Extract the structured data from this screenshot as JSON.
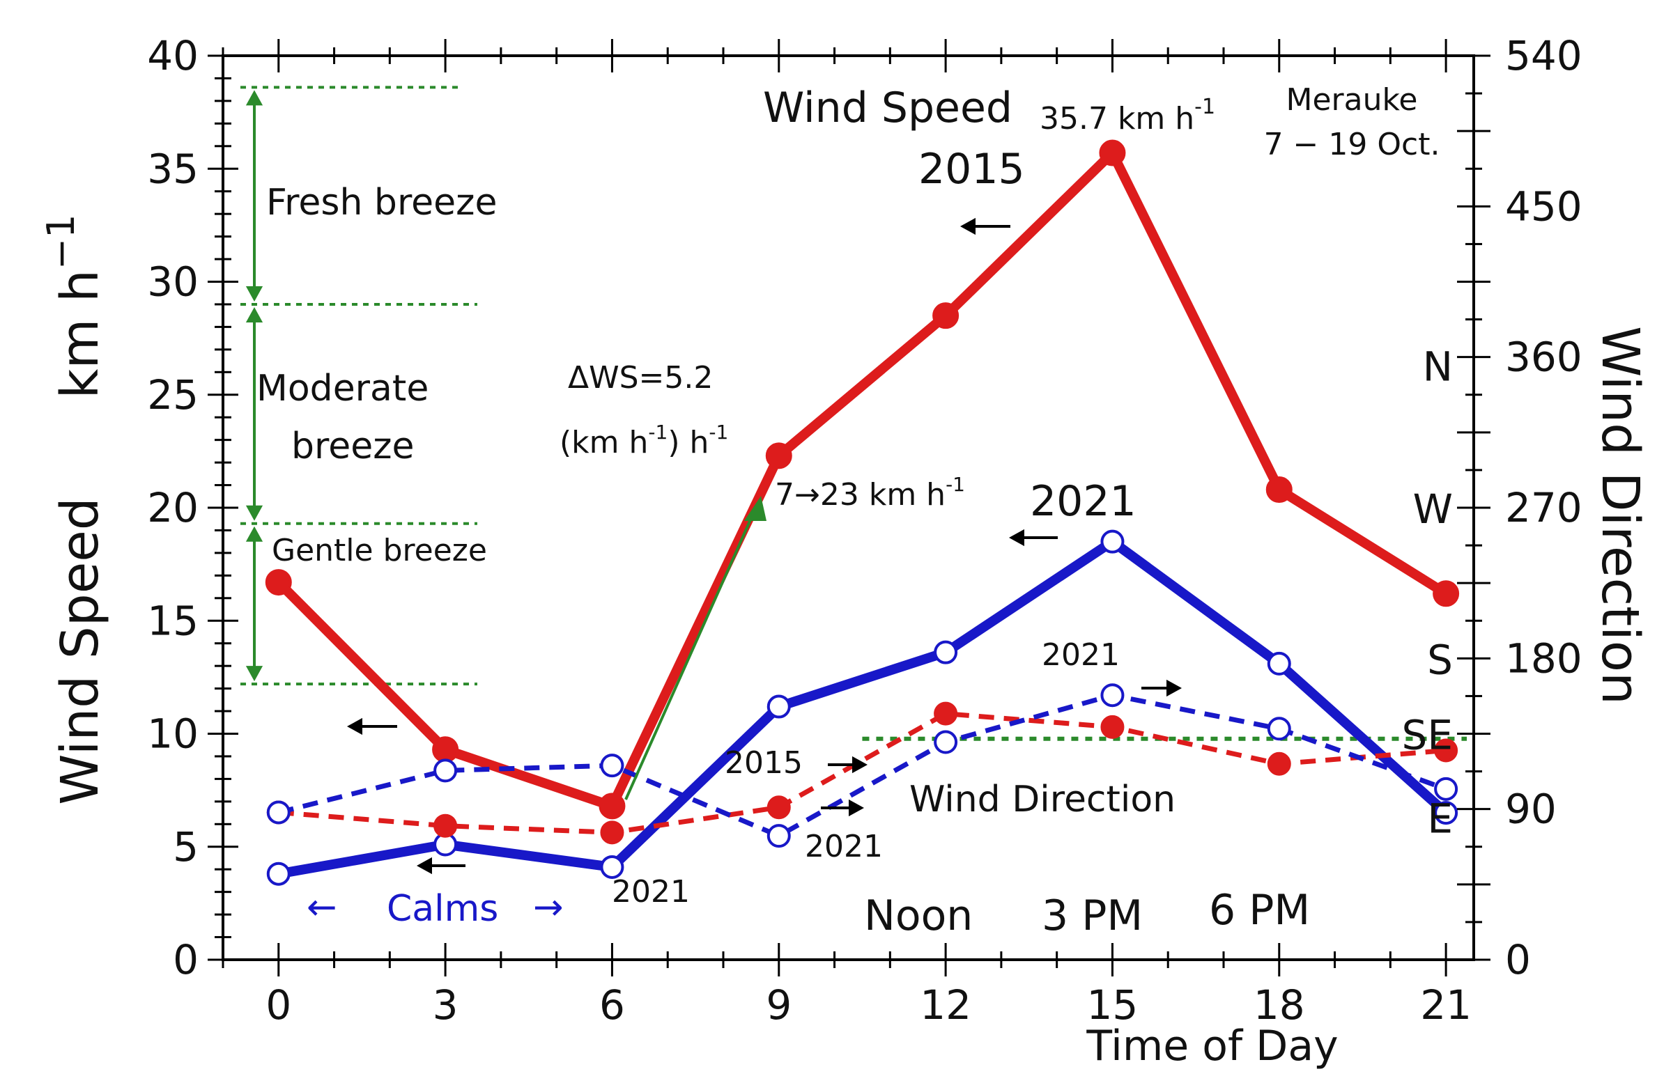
{
  "chart_data": {
    "type": "line",
    "x": [
      0,
      3,
      6,
      9,
      12,
      15,
      18,
      21
    ],
    "xlabel": "Time of Day",
    "xlim": [
      -1,
      21.5
    ],
    "x_ticks": [
      "0",
      "3",
      "6",
      "9",
      "12",
      "15",
      "18",
      "21"
    ],
    "ylabel": "Wind Speed",
    "ylabel_units": "km h",
    "ylabel_units_sup": "−1",
    "ylim": [
      0,
      40
    ],
    "y_ticks": [
      "0",
      "5",
      "10",
      "15",
      "20",
      "25",
      "30",
      "35",
      "40"
    ],
    "y2label": "Wind Direction",
    "y2lim": [
      0,
      540
    ],
    "y2_ticks": [
      "0",
      "90",
      "180",
      "270",
      "360",
      "450",
      "540"
    ],
    "y2_compass": [
      {
        "label": "E",
        "deg": 85
      },
      {
        "label": "SE",
        "deg": 135
      },
      {
        "label": "S",
        "deg": 180
      },
      {
        "label": "W",
        "deg": 270
      },
      {
        "label": "N",
        "deg": 355
      }
    ],
    "series": [
      {
        "name": "Wind Speed 2015",
        "axis": "left",
        "color": "#dd1c1c",
        "style": "solid",
        "marker": "filled",
        "values": [
          16.7,
          9.3,
          6.8,
          22.3,
          28.5,
          35.7,
          20.8,
          16.2
        ]
      },
      {
        "name": "Wind Speed 2021",
        "axis": "left",
        "color": "#1818c8",
        "style": "solid",
        "marker": "open",
        "values": [
          3.8,
          5.1,
          4.1,
          11.2,
          13.6,
          18.5,
          13.1,
          6.5
        ]
      },
      {
        "name": "Wind Direction 2015",
        "axis": "right",
        "color": "#dd1c1c",
        "style": "dashed",
        "marker": "filled",
        "values": [
          88,
          80,
          76,
          91,
          147,
          139,
          117,
          125
        ]
      },
      {
        "name": "Wind Direction 2021",
        "axis": "right",
        "color": "#1818c8",
        "style": "dashed",
        "marker": "open",
        "values": [
          88,
          113,
          116,
          74,
          130,
          158,
          138,
          102
        ]
      }
    ],
    "reference_line": {
      "label": "SE",
      "axis": "right",
      "value": 132,
      "x_from": 10.5,
      "x_to": 21.5,
      "color": "#2b8a2b"
    },
    "beaufort_bands": [
      {
        "label": "Fresh breeze",
        "from": 29.0,
        "to": 38.6
      },
      {
        "label": "Moderate breeze",
        "from": 19.3,
        "to": 29.0
      },
      {
        "label": "Gentle breeze",
        "from": 12.2,
        "to": 19.3
      }
    ],
    "annotations": {
      "title_ws": "Wind Speed",
      "peak_label": "35.7 km h",
      "peak_label_sup": "-1",
      "station": "Merauke",
      "period": "7 − 19 Oct.",
      "year_2015": "2015",
      "year_2021": "2021",
      "delta_ws": "ΔWS=5.2",
      "delta_ws_units_a": "(km h",
      "delta_ws_units_sup": "-1",
      "delta_ws_units_b": ") h",
      "delta_ws_units_sup2": "-1",
      "rise": "7→23 km h",
      "rise_sup": "-1",
      "wind_direction_label": "Wind Direction",
      "dir_2015": "2015",
      "dir_2021_a": "2021",
      "dir_2021_b": "2021",
      "ws_2021_low": "2021",
      "calms": "Calms",
      "calms_left_arrow": "←",
      "calms_right_arrow": "→",
      "noon": "Noon",
      "pm3": "3 PM",
      "pm6": "6 PM"
    },
    "colors": {
      "red": "#dd1c1c",
      "blue": "#1818c8",
      "green": "#2b8a2b",
      "axis": "#000000"
    }
  }
}
